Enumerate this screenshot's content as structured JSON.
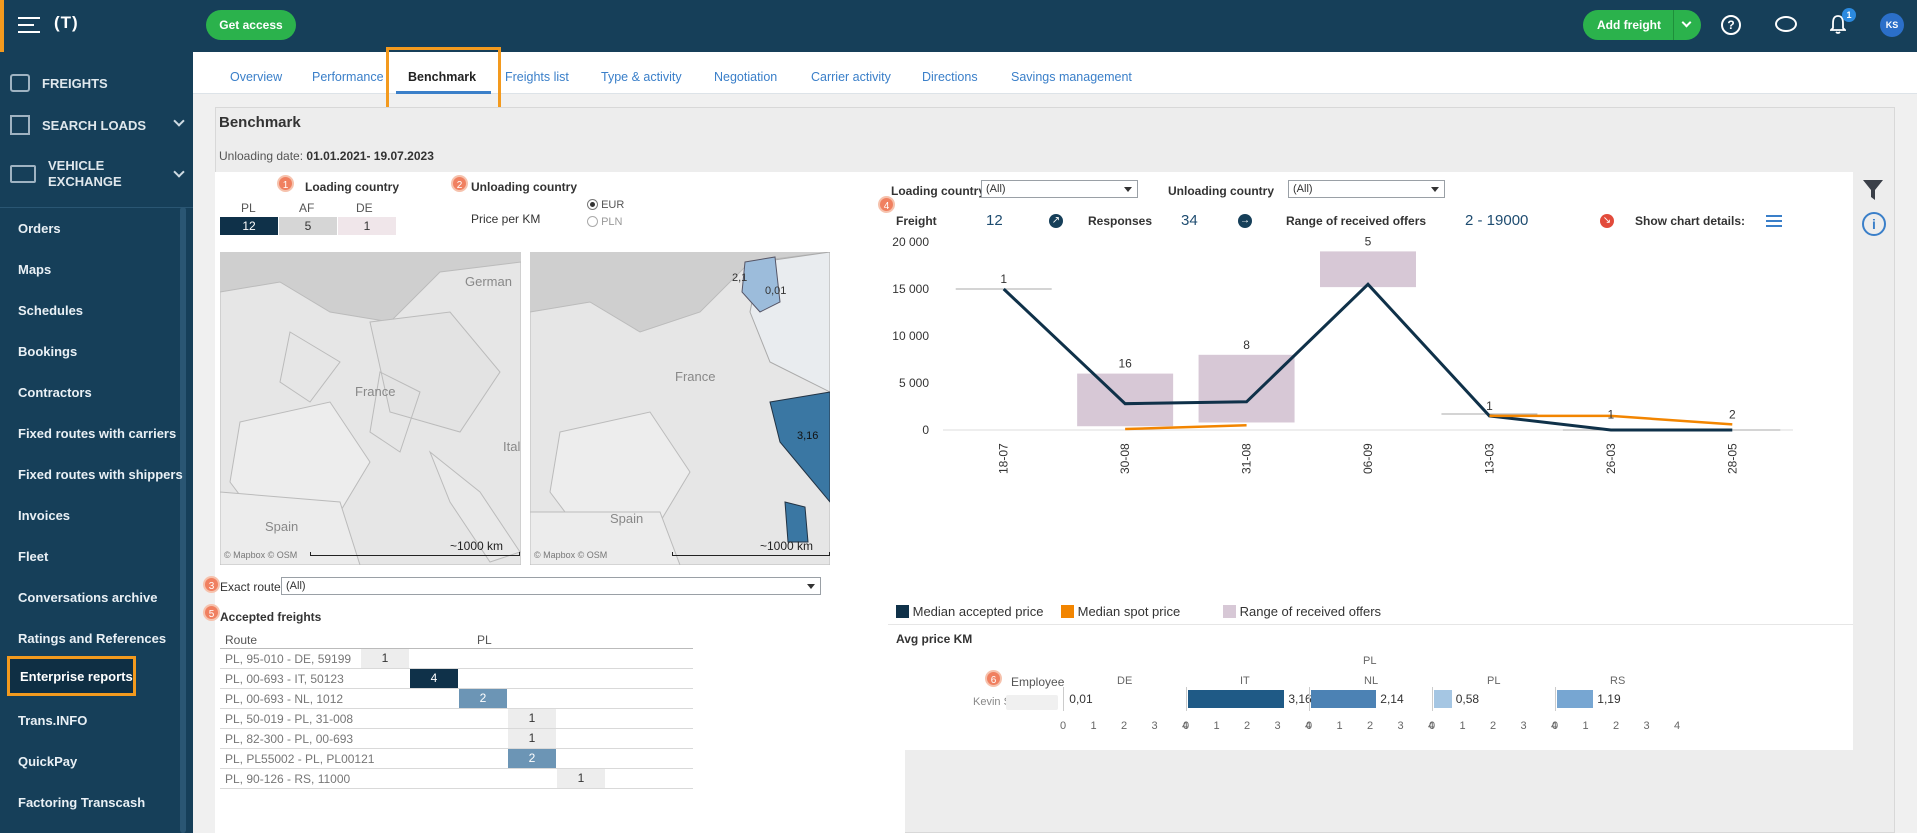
{
  "topbar": {
    "logo": "(T)",
    "get_access": "Get access",
    "add_freight": "Add freight",
    "notifications_count": "1",
    "avatar_initials": "KS"
  },
  "sidebar": {
    "freights": "FREIGHTS",
    "search_loads": "SEARCH LOADS",
    "vehicle_exchange": "VEHICLE EXCHANGE",
    "items": [
      "Orders",
      "Maps",
      "Schedules",
      "Bookings",
      "Contractors",
      "Fixed routes with carriers",
      "Fixed routes with shippers",
      "Invoices",
      "Fleet",
      "Conversations archive",
      "Ratings and References",
      "Enterprise reports",
      "Trans.INFO",
      "QuickPay",
      "Factoring Transcash"
    ],
    "active_item": "Enterprise reports"
  },
  "tabs": [
    "Overview",
    "Performance",
    "Benchmark",
    "Freights list",
    "Type & activity",
    "Negotiation",
    "Carrier activity",
    "Directions",
    "Savings management"
  ],
  "active_tab": "Benchmark",
  "page": {
    "title": "Benchmark",
    "date_label": "Unloading date:",
    "date_value": "01.01.2021- 19.07.2023"
  },
  "left_panel": {
    "loading_country_label": "Loading country",
    "unloading_country_label": "Unloading country",
    "price_per_km": "Price per KM",
    "currency_options": [
      "EUR",
      "PLN"
    ],
    "currency_selected": "EUR",
    "loading_countries": [
      {
        "code": "PL",
        "count": "12"
      },
      {
        "code": "AF",
        "count": "5"
      },
      {
        "code": "DE",
        "count": "1"
      }
    ],
    "map_attribution": "© Mapbox  © OSM",
    "map_scale": "~1000 km",
    "map_labels_left": [
      "German",
      "France",
      "Ital",
      "Spain"
    ],
    "map_labels_right": [
      "France",
      "Spain",
      "0,01",
      "2,1",
      "3,16"
    ],
    "exact_route_label": "Exact route",
    "exact_route_value": "(All)",
    "accepted_freights_label": "Accepted freights",
    "route_header": "Route",
    "pl_header": "PL",
    "routes": [
      {
        "route": "PL, 95-010 - DE, 59199",
        "value": "1"
      },
      {
        "route": "PL, 00-693 - IT, 50123",
        "value": "4"
      },
      {
        "route": "PL, 00-693 - NL, 1012",
        "value": "2"
      },
      {
        "route": "PL, 50-019 - PL, 31-008",
        "value": "1"
      },
      {
        "route": "PL, 82-300 - PL, 00-693",
        "value": "1"
      },
      {
        "route": "PL, PL55002 - PL, PL00121",
        "value": "2"
      },
      {
        "route": "PL, 90-126 - RS, 11000",
        "value": "1"
      }
    ]
  },
  "badges": [
    "1",
    "2",
    "3",
    "4",
    "5",
    "6"
  ],
  "right_panel": {
    "loading_country_label": "Loading country",
    "loading_country_value": "(All)",
    "unloading_country_label": "Unloading country",
    "unloading_country_value": "(All)",
    "freight_label": "Freight",
    "freight_value": "12",
    "responses_label": "Responses",
    "responses_value": "34",
    "range_label": "Range of received offers",
    "range_value": "2 - 19000",
    "show_details": "Show chart details:",
    "legend": [
      "Median accepted price",
      "Median spot price",
      "Range of received offers"
    ],
    "avg_price_label": "Avg price KM",
    "employee_header": "Employee",
    "employee_name": "Kevin S",
    "pl_group": "PL",
    "countries": [
      "DE",
      "IT",
      "NL",
      "PL",
      "RS"
    ],
    "country_values": [
      "0,01",
      "3,16",
      "2,14",
      "0,58",
      "1,19"
    ],
    "axis_ticks": [
      "0",
      "1",
      "2",
      "3",
      "4"
    ]
  },
  "colors": {
    "navy": "#163f59",
    "accent_orange": "#f39a1e",
    "green": "#2bb24c",
    "dark_line": "#0f3149",
    "spot_line": "#f28500",
    "range_box": "#d7c8d6"
  },
  "chart_data": {
    "type": "line",
    "categories": [
      "18-07",
      "30-08",
      "31-08",
      "06-09",
      "13-03",
      "26-03",
      "28-05"
    ],
    "series": [
      {
        "name": "Median accepted price",
        "values": [
          15000,
          2800,
          3000,
          15500,
          1500,
          0,
          0
        ]
      },
      {
        "name": "Median spot price",
        "values": [
          null,
          100,
          500,
          null,
          1500,
          1500,
          600
        ]
      }
    ],
    "ranges": [
      {
        "category": "30-08",
        "low": 400,
        "high": 6000,
        "label": "16"
      },
      {
        "category": "31-08",
        "low": 800,
        "high": 8000,
        "label": "8"
      },
      {
        "category": "06-09",
        "low": 15200,
        "high": 19000,
        "label": "5"
      }
    ],
    "point_labels": [
      {
        "category": "18-07",
        "label": "1"
      },
      {
        "category": "13-03",
        "label": "1"
      },
      {
        "category": "26-03",
        "label": "1"
      },
      {
        "category": "28-05",
        "label": "2"
      }
    ],
    "yticks": [
      "20 000",
      "15 000",
      "10 000",
      "5 000",
      "0"
    ],
    "ylim": [
      0,
      20000
    ]
  }
}
